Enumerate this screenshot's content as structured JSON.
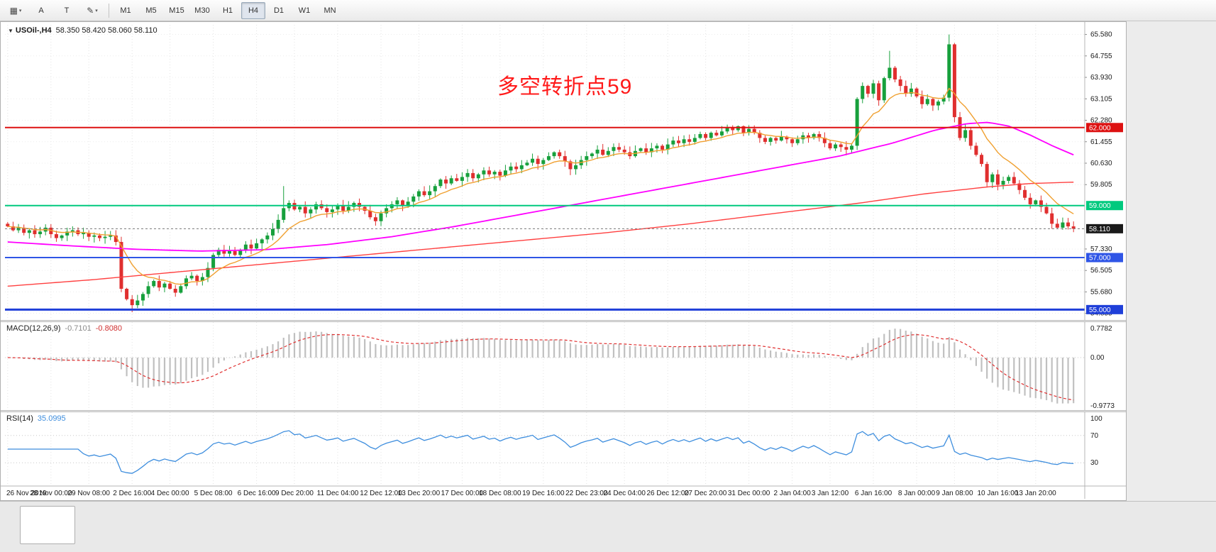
{
  "toolbar": {
    "layout_button": {
      "glyph": "▦",
      "caret": "▾"
    },
    "text_tool_label": "A",
    "type_tool_label": "T",
    "styles_button": {
      "glyph": "✎",
      "caret": "▾"
    },
    "timeframes": [
      {
        "label": "M1",
        "active": false
      },
      {
        "label": "M5",
        "active": false
      },
      {
        "label": "M15",
        "active": false
      },
      {
        "label": "M30",
        "active": false
      },
      {
        "label": "H1",
        "active": false
      },
      {
        "label": "H4",
        "active": true
      },
      {
        "label": "D1",
        "active": false
      },
      {
        "label": "W1",
        "active": false
      },
      {
        "label": "MN",
        "active": false
      }
    ]
  },
  "chart": {
    "symbol_marker": "▼",
    "symbol_label": "USOil-,H4",
    "ohlc_label": "58.350 58.420 58.060 58.110",
    "annotation": {
      "text": "多空转折点59",
      "color": "#ff1a1a"
    },
    "colors": {
      "candle_up": "#17a03c",
      "candle_down": "#e02f2f",
      "ma_fast": "#f0a030",
      "ma_mid": "#ff00ff",
      "ma_slow": "#ff4040",
      "grid": "#e4e4e4"
    },
    "price_scale": {
      "labels": [
        "65.580",
        "64.755",
        "63.930",
        "63.105",
        "62.280",
        "61.455",
        "60.630",
        "59.805",
        "57.330",
        "56.505",
        "55.680",
        "54.855"
      ]
    },
    "hlines": [
      {
        "label": "62.000",
        "value": 62.0,
        "color": "#dd1111",
        "width": 2
      },
      {
        "label": "59.000",
        "value": 59.0,
        "color": "#00c97e",
        "width": 2
      },
      {
        "label": "57.000",
        "value": 57.0,
        "color": "#2f55e6",
        "width": 2
      },
      {
        "label": "55.000",
        "value": 55.0,
        "color": "#1f3fd9",
        "width": 3
      }
    ],
    "current_price": {
      "label": "58.110",
      "value": 58.11
    },
    "first_open": 58.3,
    "closes": [
      58.2,
      58.05,
      58.15,
      57.95,
      58.05,
      57.9,
      58.0,
      58.15,
      57.9,
      57.75,
      57.85,
      58.0,
      58.05,
      57.9,
      57.95,
      57.8,
      57.85,
      57.75,
      57.8,
      57.85,
      57.6,
      55.8,
      55.4,
      55.17,
      55.35,
      55.6,
      55.9,
      56.1,
      55.85,
      56.0,
      55.8,
      55.65,
      55.9,
      56.2,
      56.3,
      56.1,
      56.25,
      56.6,
      57.1,
      57.3,
      57.15,
      57.25,
      57.1,
      57.3,
      57.5,
      57.35,
      57.55,
      57.7,
      57.85,
      58.1,
      58.45,
      58.9,
      59.1,
      58.85,
      58.95,
      58.7,
      58.85,
      59.05,
      58.9,
      58.75,
      58.85,
      59.0,
      58.8,
      58.95,
      59.1,
      58.95,
      58.8,
      58.55,
      58.4,
      58.7,
      58.9,
      59.05,
      59.2,
      59.0,
      59.15,
      59.35,
      59.55,
      59.4,
      59.55,
      59.75,
      60.0,
      59.85,
      60.05,
      59.95,
      60.1,
      60.25,
      60.05,
      60.2,
      60.35,
      60.2,
      60.3,
      60.15,
      60.35,
      60.5,
      60.4,
      60.55,
      60.65,
      60.8,
      60.6,
      60.75,
      60.9,
      61.05,
      60.9,
      60.7,
      60.4,
      60.55,
      60.75,
      60.9,
      61.0,
      61.15,
      60.95,
      61.1,
      61.25,
      61.15,
      61.05,
      60.9,
      61.1,
      61.2,
      61.05,
      61.2,
      61.3,
      61.15,
      61.35,
      61.5,
      61.4,
      61.55,
      61.45,
      61.6,
      61.75,
      61.6,
      61.8,
      61.7,
      61.85,
      62.0,
      61.9,
      62.05,
      61.8,
      61.95,
      61.8,
      61.6,
      61.45,
      61.6,
      61.5,
      61.65,
      61.55,
      61.4,
      61.55,
      61.7,
      61.6,
      61.75,
      61.6,
      61.4,
      61.2,
      61.35,
      61.25,
      61.15,
      61.3,
      63.1,
      63.6,
      63.3,
      63.7,
      63.05,
      63.9,
      64.3,
      63.85,
      63.6,
      63.3,
      63.5,
      63.2,
      62.9,
      63.1,
      62.85,
      63.0,
      63.15,
      65.2,
      62.4,
      61.6,
      61.9,
      61.3,
      60.95,
      60.6,
      59.9,
      60.2,
      59.8,
      59.95,
      60.1,
      59.85,
      59.6,
      59.3,
      59.05,
      59.2,
      58.95,
      58.7,
      58.3,
      58.15,
      58.35,
      58.2,
      58.11
    ],
    "specials": {
      "23": {
        "low": 54.9
      },
      "51": {
        "high": 59.75
      },
      "163": {
        "high": 64.95
      },
      "174": {
        "high": 65.58
      },
      "175": {
        "low": 62.2
      }
    },
    "ma_slow_anchors": [
      [
        0,
        55.9
      ],
      [
        0.08,
        56.15
      ],
      [
        0.16,
        56.45
      ],
      [
        0.24,
        56.75
      ],
      [
        0.32,
        57.05
      ],
      [
        0.4,
        57.35
      ],
      [
        0.48,
        57.65
      ],
      [
        0.56,
        57.95
      ],
      [
        0.64,
        58.3
      ],
      [
        0.72,
        58.7
      ],
      [
        0.8,
        59.1
      ],
      [
        0.86,
        59.45
      ],
      [
        0.92,
        59.72
      ],
      [
        0.96,
        59.85
      ],
      [
        1.0,
        59.9
      ]
    ],
    "ma_mid_anchors": [
      [
        0,
        57.6
      ],
      [
        0.06,
        57.45
      ],
      [
        0.12,
        57.32
      ],
      [
        0.18,
        57.25
      ],
      [
        0.24,
        57.3
      ],
      [
        0.3,
        57.5
      ],
      [
        0.36,
        57.8
      ],
      [
        0.42,
        58.2
      ],
      [
        0.48,
        58.65
      ],
      [
        0.54,
        59.1
      ],
      [
        0.6,
        59.55
      ],
      [
        0.66,
        60.0
      ],
      [
        0.72,
        60.45
      ],
      [
        0.78,
        60.9
      ],
      [
        0.83,
        61.4
      ],
      [
        0.87,
        61.9
      ],
      [
        0.9,
        62.15
      ],
      [
        0.92,
        62.2
      ],
      [
        0.94,
        62.05
      ],
      [
        0.96,
        61.7
      ],
      [
        0.98,
        61.3
      ],
      [
        1.0,
        60.95
      ]
    ],
    "ma_fast_period": 10,
    "x_labels": [
      "26 Nov 2019",
      "28 Nov 00:00",
      "29 Nov 08:00",
      "2 Dec 16:00",
      "4 Dec 00:00",
      "5 Dec 08:00",
      "6 Dec 16:00",
      "9 Dec 20:00",
      "11 Dec 04:00",
      "12 Dec 12:00",
      "13 Dec 20:00",
      "17 Dec 00:00",
      "18 Dec 08:00",
      "19 Dec 16:00",
      "22 Dec 23:00",
      "24 Dec 04:00",
      "26 Dec 12:00",
      "27 Dec 20:00",
      "31 Dec 00:00",
      "2 Jan 04:00",
      "3 Jan 12:00",
      "6 Jan 16:00",
      "8 Jan 00:00",
      "9 Jan 08:00",
      "10 Jan 16:00",
      "13 Jan 20:00"
    ]
  },
  "macd": {
    "label": "MACD(12,26,9)",
    "value_main": "-0.7101",
    "value_signal": "-0.8080",
    "scale_top": "0.7782",
    "scale_zero": "0.00",
    "scale_bottom": "-0.9773",
    "fast": 12,
    "slow": 26,
    "signal": 9,
    "hist_color": "#c0c0c0",
    "signal_color": "#e03030"
  },
  "rsi": {
    "label": "RSI(14)",
    "value": "35.0995",
    "period": 14,
    "scale_top": "100",
    "levels": [
      70,
      30
    ],
    "line_color": "#3e8ede"
  }
}
